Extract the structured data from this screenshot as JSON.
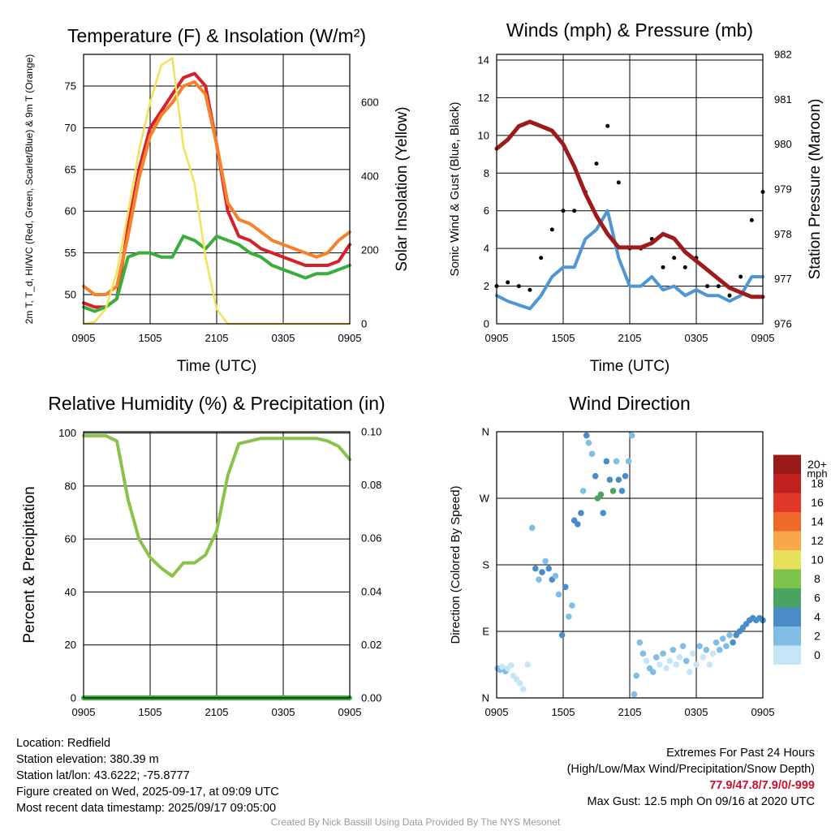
{
  "chart_data": [
    {
      "id": "temperature",
      "type": "line",
      "title": "Temperature (F) & Insolation (W/m²)",
      "xlabel": "Time (UTC)",
      "ylabel": "2m T, T_d, HI/WC (Red, Green, Scarlet/Blue) & 9m T (Orange)",
      "ylabel_right": "Solar Insolation (Yellow)",
      "xticks": [
        "0905",
        "1505",
        "2105",
        "0305",
        "0905"
      ],
      "yticks": [
        50,
        55,
        60,
        65,
        70,
        75
      ],
      "yticks_right": [
        0,
        200,
        400,
        600
      ],
      "ylim": [
        46.5,
        78.8
      ],
      "ylim_right": [
        0,
        730
      ],
      "grid": true,
      "colors": {
        "temp_2m": "#d4212a",
        "dewpoint": "#3aae3a",
        "temp_9m": "#f7812a",
        "insolation": "#f4e15a"
      },
      "series": [
        {
          "name": "2m T",
          "axis": "left",
          "color": "#d4212a",
          "x": [
            0,
            1,
            2,
            3,
            4,
            5,
            6,
            7,
            8,
            9,
            10,
            11,
            12,
            13,
            14,
            15,
            16,
            17,
            18,
            19,
            20,
            21,
            22,
            23,
            24
          ],
          "y": [
            49,
            48.5,
            48.5,
            49.5,
            58,
            65,
            70,
            72,
            74,
            76,
            76.5,
            75,
            68,
            60,
            57,
            56.5,
            55.5,
            55,
            54.5,
            54,
            53.5,
            53.5,
            53.5,
            54,
            56
          ]
        },
        {
          "name": "T_d",
          "axis": "left",
          "color": "#3aae3a",
          "x": [
            0,
            1,
            2,
            3,
            4,
            5,
            6,
            7,
            8,
            9,
            10,
            11,
            12,
            13,
            14,
            15,
            16,
            17,
            18,
            19,
            20,
            21,
            22,
            23,
            24
          ],
          "y": [
            48.5,
            48,
            48.5,
            49.5,
            54.5,
            55,
            55,
            54.5,
            54.5,
            57,
            56.5,
            55.5,
            57,
            56.5,
            56,
            55,
            54.5,
            53.5,
            53,
            52.5,
            52,
            52.5,
            52.5,
            53,
            53.5
          ]
        },
        {
          "name": "9m T",
          "axis": "left",
          "color": "#f7812a",
          "x": [
            0,
            1,
            2,
            3,
            4,
            5,
            6,
            7,
            8,
            9,
            10,
            11,
            12,
            13,
            14,
            15,
            16,
            17,
            18,
            19,
            20,
            21,
            22,
            23,
            24
          ],
          "y": [
            51,
            50,
            50,
            51,
            57,
            64,
            69,
            71.5,
            73,
            75,
            75.5,
            74,
            68,
            61,
            59,
            58.5,
            57.5,
            56.5,
            56,
            55.5,
            55,
            54.5,
            55,
            56.5,
            57.5
          ]
        },
        {
          "name": "Solar Insolation",
          "axis": "right",
          "color": "#f4e15a",
          "x": [
            0,
            1,
            2,
            3,
            4,
            5,
            6,
            7,
            8,
            9,
            10,
            11,
            12,
            13,
            14,
            15,
            16,
            17,
            18,
            19,
            20,
            21,
            22,
            23,
            24
          ],
          "y": [
            0,
            5,
            40,
            140,
            300,
            470,
            600,
            700,
            720,
            480,
            380,
            180,
            40,
            0,
            0,
            0,
            0,
            0,
            0,
            0,
            0,
            0,
            0,
            0,
            0
          ]
        }
      ]
    },
    {
      "id": "winds",
      "type": "line",
      "title": "Winds (mph) & Pressure (mb)",
      "xlabel": "Time (UTC)",
      "ylabel": "Sonic Wind & Gust (Blue, Black)",
      "ylabel_right": "Station Pressure (Maroon)",
      "xticks": [
        "0905",
        "1505",
        "2105",
        "0305",
        "0905"
      ],
      "yticks": [
        0,
        2,
        4,
        6,
        8,
        10,
        12,
        14
      ],
      "yticks_right": [
        976,
        977,
        978,
        979,
        980,
        981,
        982
      ],
      "ylim": [
        0,
        14.3
      ],
      "ylim_right": [
        976,
        982
      ],
      "grid": true,
      "colors": {
        "wind": "#4f97d4",
        "gust": "#000000",
        "pressure": "#9e1b1b"
      },
      "series": [
        {
          "name": "Sonic Wind",
          "axis": "left",
          "color": "#4f97d4",
          "x": [
            0,
            1,
            2,
            3,
            4,
            5,
            6,
            7,
            8,
            9,
            10,
            11,
            12,
            13,
            14,
            15,
            16,
            17,
            18,
            19,
            20,
            21,
            22,
            23,
            24
          ],
          "y": [
            1.5,
            1.2,
            1.0,
            0.8,
            1.5,
            2.5,
            3.0,
            3.0,
            4.5,
            5.0,
            6.0,
            3.5,
            2.0,
            2.0,
            2.5,
            1.8,
            2.0,
            1.5,
            1.8,
            1.5,
            1.5,
            1.2,
            1.5,
            2.5,
            2.5
          ]
        },
        {
          "name": "Gust",
          "axis": "left",
          "color": "#000000",
          "x": [
            0,
            1,
            2,
            3,
            4,
            5,
            6,
            7,
            8,
            9,
            10,
            11,
            12,
            13,
            14,
            15,
            16,
            17,
            18,
            19,
            20,
            21,
            22,
            23,
            24
          ],
          "y": [
            2.0,
            2.2,
            2.0,
            1.8,
            3.5,
            5.0,
            6.0,
            6.0,
            7.0,
            8.5,
            10.5,
            7.5,
            4.0,
            4.0,
            4.5,
            3.0,
            3.5,
            3.0,
            3.5,
            2.0,
            2.0,
            1.5,
            2.5,
            5.5,
            7.0
          ]
        },
        {
          "name": "Station Pressure",
          "axis": "right",
          "color": "#9e1b1b",
          "x": [
            0,
            1,
            2,
            3,
            4,
            5,
            6,
            7,
            8,
            9,
            10,
            11,
            12,
            13,
            14,
            15,
            16,
            17,
            18,
            19,
            20,
            21,
            22,
            23,
            24
          ],
          "y": [
            979.9,
            980.1,
            980.4,
            980.5,
            980.4,
            980.3,
            980.0,
            979.5,
            978.9,
            978.4,
            978.0,
            977.7,
            977.7,
            977.7,
            977.8,
            978.0,
            977.9,
            977.6,
            977.4,
            977.2,
            977.0,
            976.8,
            976.7,
            976.6,
            976.6
          ]
        }
      ]
    },
    {
      "id": "humidity",
      "type": "line",
      "title": "Relative Humidity (%) & Precipitation (in)",
      "xlabel": "",
      "ylabel": "Percent & Precipitation",
      "xticks": [
        "0905",
        "1505",
        "2105",
        "0305",
        "0905"
      ],
      "yticks": [
        0,
        20,
        40,
        60,
        80,
        100
      ],
      "yticks_right": [
        "0.00",
        "0.02",
        "0.04",
        "0.06",
        "0.08",
        "0.10"
      ],
      "ylim": [
        0,
        100.5
      ],
      "ylim_right": [
        0,
        0.1
      ],
      "grid": true,
      "colors": {
        "rh": "#8bc34a",
        "precip": "#3aae3a"
      },
      "series": [
        {
          "name": "Relative Humidity",
          "axis": "left",
          "color": "#8bc34a",
          "x": [
            0,
            1,
            2,
            3,
            4,
            5,
            6,
            7,
            8,
            9,
            10,
            11,
            12,
            13,
            14,
            15,
            16,
            17,
            18,
            19,
            20,
            21,
            22,
            23,
            24
          ],
          "y": [
            99,
            99,
            99,
            97,
            75,
            60,
            53,
            49,
            46,
            51,
            51,
            54,
            63,
            84,
            96,
            97,
            98,
            98,
            98,
            98,
            98,
            98,
            97,
            95,
            90
          ]
        },
        {
          "name": "Precipitation",
          "axis": "right",
          "color": "#3aae3a",
          "x": [
            0,
            24
          ],
          "y": [
            0,
            0
          ]
        }
      ]
    },
    {
      "id": "direction",
      "type": "scatter",
      "title": "Wind Direction",
      "xlabel": "",
      "ylabel": "Direction (Colored By Speed)",
      "xticks": [
        "0905",
        "1505",
        "2105",
        "0305",
        "0905"
      ],
      "yticks": [
        "N",
        "E",
        "S",
        "W",
        "N"
      ],
      "ylim": [
        0,
        360
      ],
      "grid": true,
      "colorbar": {
        "title": "mph",
        "labels": [
          "0",
          "2",
          "4",
          "6",
          "8",
          "10",
          "12",
          "14",
          "16",
          "18",
          "20+"
        ],
        "colors": [
          "#c6e6f8",
          "#82bde6",
          "#4a8cc7",
          "#4aa360",
          "#7dc24a",
          "#e8e05a",
          "#f7a84a",
          "#ef6a2a",
          "#e0372a",
          "#c2201e",
          "#9a1a1a"
        ]
      },
      "points": [
        {
          "x": 0.1,
          "y": 40,
          "s": 1
        },
        {
          "x": 0.3,
          "y": 38,
          "s": 1
        },
        {
          "x": 0.5,
          "y": 42,
          "s": 0
        },
        {
          "x": 0.8,
          "y": 36,
          "s": 1
        },
        {
          "x": 1.0,
          "y": 40,
          "s": 0
        },
        {
          "x": 1.3,
          "y": 44,
          "s": 0
        },
        {
          "x": 1.5,
          "y": 30,
          "s": 0
        },
        {
          "x": 1.8,
          "y": 25,
          "s": 0
        },
        {
          "x": 2.1,
          "y": 20,
          "s": 0
        },
        {
          "x": 2.4,
          "y": 12,
          "s": 0
        },
        {
          "x": 2.8,
          "y": 45,
          "s": 0
        },
        {
          "x": 3.2,
          "y": 230,
          "s": 1
        },
        {
          "x": 3.5,
          "y": 175,
          "s": 2
        },
        {
          "x": 3.8,
          "y": 160,
          "s": 1
        },
        {
          "x": 4.1,
          "y": 170,
          "s": 2
        },
        {
          "x": 4.4,
          "y": 185,
          "s": 1
        },
        {
          "x": 4.7,
          "y": 175,
          "s": 2
        },
        {
          "x": 5.0,
          "y": 160,
          "s": 2
        },
        {
          "x": 5.3,
          "y": 165,
          "s": 1
        },
        {
          "x": 5.6,
          "y": 140,
          "s": 1
        },
        {
          "x": 5.9,
          "y": 85,
          "s": 2
        },
        {
          "x": 6.2,
          "y": 150,
          "s": 2
        },
        {
          "x": 6.5,
          "y": 110,
          "s": 1
        },
        {
          "x": 6.8,
          "y": 125,
          "s": 1
        },
        {
          "x": 7.0,
          "y": 240,
          "s": 2
        },
        {
          "x": 7.3,
          "y": 235,
          "s": 2
        },
        {
          "x": 7.6,
          "y": 250,
          "s": 2
        },
        {
          "x": 7.8,
          "y": 280,
          "s": 1
        },
        {
          "x": 8.1,
          "y": 355,
          "s": 2
        },
        {
          "x": 8.3,
          "y": 345,
          "s": 1
        },
        {
          "x": 8.6,
          "y": 330,
          "s": 1
        },
        {
          "x": 8.9,
          "y": 300,
          "s": 2
        },
        {
          "x": 9.1,
          "y": 270,
          "s": 3
        },
        {
          "x": 9.4,
          "y": 275,
          "s": 3
        },
        {
          "x": 9.6,
          "y": 250,
          "s": 2
        },
        {
          "x": 9.9,
          "y": 320,
          "s": 2
        },
        {
          "x": 10.2,
          "y": 295,
          "s": 2
        },
        {
          "x": 10.5,
          "y": 280,
          "s": 3
        },
        {
          "x": 10.8,
          "y": 320,
          "s": 1
        },
        {
          "x": 11.0,
          "y": 295,
          "s": 2
        },
        {
          "x": 11.3,
          "y": 280,
          "s": 2
        },
        {
          "x": 11.6,
          "y": 300,
          "s": 2
        },
        {
          "x": 11.9,
          "y": 320,
          "s": 1
        },
        {
          "x": 12.2,
          "y": 355,
          "s": 1
        },
        {
          "x": 12.4,
          "y": 5,
          "s": 1
        },
        {
          "x": 12.6,
          "y": 30,
          "s": 1
        },
        {
          "x": 12.9,
          "y": 75,
          "s": 1
        },
        {
          "x": 13.2,
          "y": 60,
          "s": 1
        },
        {
          "x": 13.5,
          "y": 50,
          "s": 0
        },
        {
          "x": 13.8,
          "y": 40,
          "s": 1
        },
        {
          "x": 14.1,
          "y": 35,
          "s": 1
        },
        {
          "x": 14.4,
          "y": 55,
          "s": 1
        },
        {
          "x": 14.7,
          "y": 45,
          "s": 0
        },
        {
          "x": 15.0,
          "y": 60,
          "s": 1
        },
        {
          "x": 15.3,
          "y": 40,
          "s": 0
        },
        {
          "x": 15.6,
          "y": 50,
          "s": 0
        },
        {
          "x": 15.9,
          "y": 65,
          "s": 1
        },
        {
          "x": 16.2,
          "y": 45,
          "s": 0
        },
        {
          "x": 16.5,
          "y": 55,
          "s": 0
        },
        {
          "x": 16.8,
          "y": 70,
          "s": 1
        },
        {
          "x": 17.1,
          "y": 50,
          "s": 1
        },
        {
          "x": 17.4,
          "y": 35,
          "s": 0
        },
        {
          "x": 17.7,
          "y": 60,
          "s": 0
        },
        {
          "x": 18.0,
          "y": 45,
          "s": 0
        },
        {
          "x": 18.3,
          "y": 70,
          "s": 1
        },
        {
          "x": 18.6,
          "y": 55,
          "s": 0
        },
        {
          "x": 18.9,
          "y": 65,
          "s": 1
        },
        {
          "x": 19.2,
          "y": 45,
          "s": 0
        },
        {
          "x": 19.5,
          "y": 60,
          "s": 0
        },
        {
          "x": 19.8,
          "y": 75,
          "s": 1
        },
        {
          "x": 20.1,
          "y": 65,
          "s": 1
        },
        {
          "x": 20.4,
          "y": 80,
          "s": 1
        },
        {
          "x": 20.7,
          "y": 70,
          "s": 1
        },
        {
          "x": 21.0,
          "y": 85,
          "s": 1
        },
        {
          "x": 21.3,
          "y": 75,
          "s": 2
        },
        {
          "x": 21.6,
          "y": 85,
          "s": 2
        },
        {
          "x": 21.9,
          "y": 90,
          "s": 2
        },
        {
          "x": 22.2,
          "y": 95,
          "s": 2
        },
        {
          "x": 22.5,
          "y": 100,
          "s": 2
        },
        {
          "x": 22.8,
          "y": 105,
          "s": 2
        },
        {
          "x": 23.1,
          "y": 108,
          "s": 2
        },
        {
          "x": 23.4,
          "y": 105,
          "s": 2
        },
        {
          "x": 23.7,
          "y": 108,
          "s": 2
        },
        {
          "x": 24.0,
          "y": 105,
          "s": 2
        }
      ]
    }
  ],
  "info": {
    "location": "Location: Redfield",
    "elevation": "Station elevation: 380.39 m",
    "latlon": "Station lat/lon: 43.6222; -75.8777",
    "created": "Figure created on Wed, 2025-09-17, at 09:09 UTC",
    "recent": "Most recent data timestamp: 2025/09/17 09:05:00"
  },
  "extremes": {
    "title": "Extremes For Past 24 Hours",
    "subtitle": "(High/Low/Max Wind/Precipitation/Snow Depth)",
    "values": "77.9/47.8/7.9/0/-999",
    "gust": "Max Gust: 12.5 mph On 09/16 at 2020 UTC"
  },
  "credit": "Created By Nick Bassill Using Data Provided By The NYS Mesonet"
}
